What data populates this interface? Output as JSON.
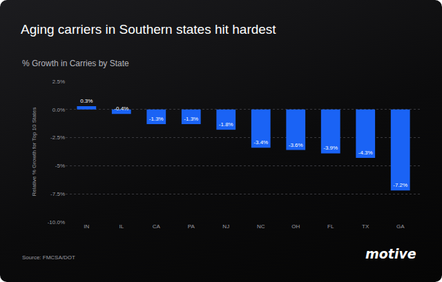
{
  "chart_data": {
    "type": "bar",
    "title": "Aging carriers in Southern states hit hardest",
    "subtitle": "% Growth in Carries by State",
    "y_label": "Relative % Growth for Top 10 States",
    "source": "Source: FMCSA/DOT",
    "brand": "motive",
    "categories": [
      "IN",
      "IL",
      "CA",
      "PA",
      "NJ",
      "NC",
      "OH",
      "FL",
      "TX",
      "GA"
    ],
    "values": [
      0.3,
      -0.4,
      -1.3,
      -1.3,
      -1.8,
      -3.4,
      -3.6,
      -3.9,
      -4.3,
      -7.2
    ],
    "value_labels": [
      "0.3%",
      "-0.4%",
      "-1.3%",
      "-1.3%",
      "-1.8%",
      "-3.4%",
      "-3.6%",
      "-3.9%",
      "-4.3%",
      "-7.2%"
    ],
    "data_labels": true,
    "color": "#1a63f5",
    "ylim": [
      -10,
      2.5
    ],
    "yticks": [
      {
        "value": 2.5,
        "label": "2.5%"
      },
      {
        "value": 0,
        "label": "0.0%"
      },
      {
        "value": -2.5,
        "label": "-2.5%"
      },
      {
        "value": -5,
        "label": "-5%"
      },
      {
        "value": -7.5,
        "label": "-7.5%"
      },
      {
        "value": -10,
        "label": "-10.0%"
      }
    ],
    "grid": true
  }
}
